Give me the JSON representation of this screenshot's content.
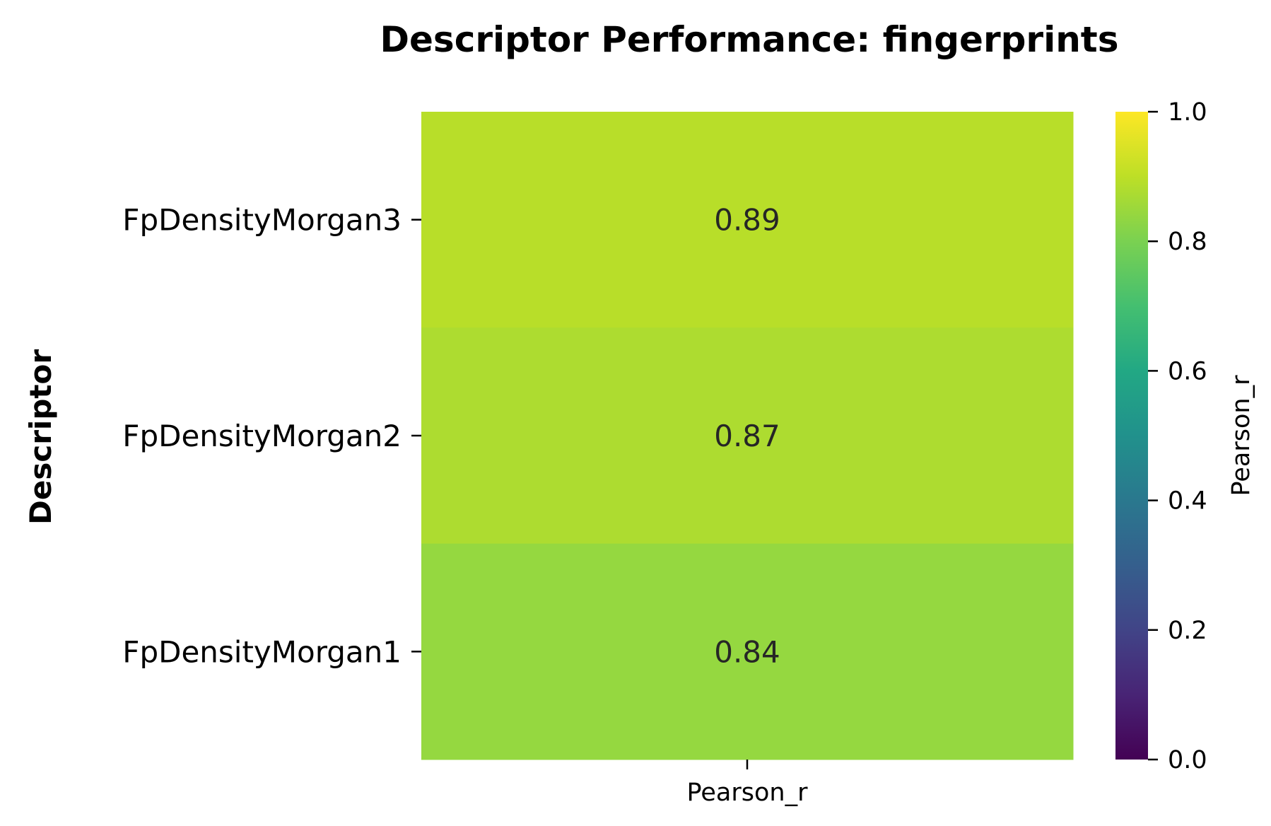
{
  "chart_data": {
    "type": "heatmap",
    "title": "Descriptor Performance: fingerprints",
    "ylabel": "Descriptor",
    "xlabel": "",
    "columns": [
      "Pearson_r"
    ],
    "rows": [
      "FpDensityMorgan3",
      "FpDensityMorgan2",
      "FpDensityMorgan1"
    ],
    "values": [
      [
        0.89
      ],
      [
        0.87
      ],
      [
        0.84
      ]
    ],
    "cell_labels": [
      [
        "0.89"
      ],
      [
        "0.87"
      ],
      [
        "0.84"
      ]
    ],
    "cell_colors": [
      [
        "#b8de29"
      ],
      [
        "#addc30"
      ],
      [
        "#95d840"
      ]
    ],
    "colorbar": {
      "label": "Pearson_r",
      "colormap": "viridis",
      "vmin": 0.0,
      "vmax": 1.0,
      "ticks": [
        "0.0",
        "0.2",
        "0.4",
        "0.6",
        "0.8",
        "1.0"
      ]
    }
  }
}
